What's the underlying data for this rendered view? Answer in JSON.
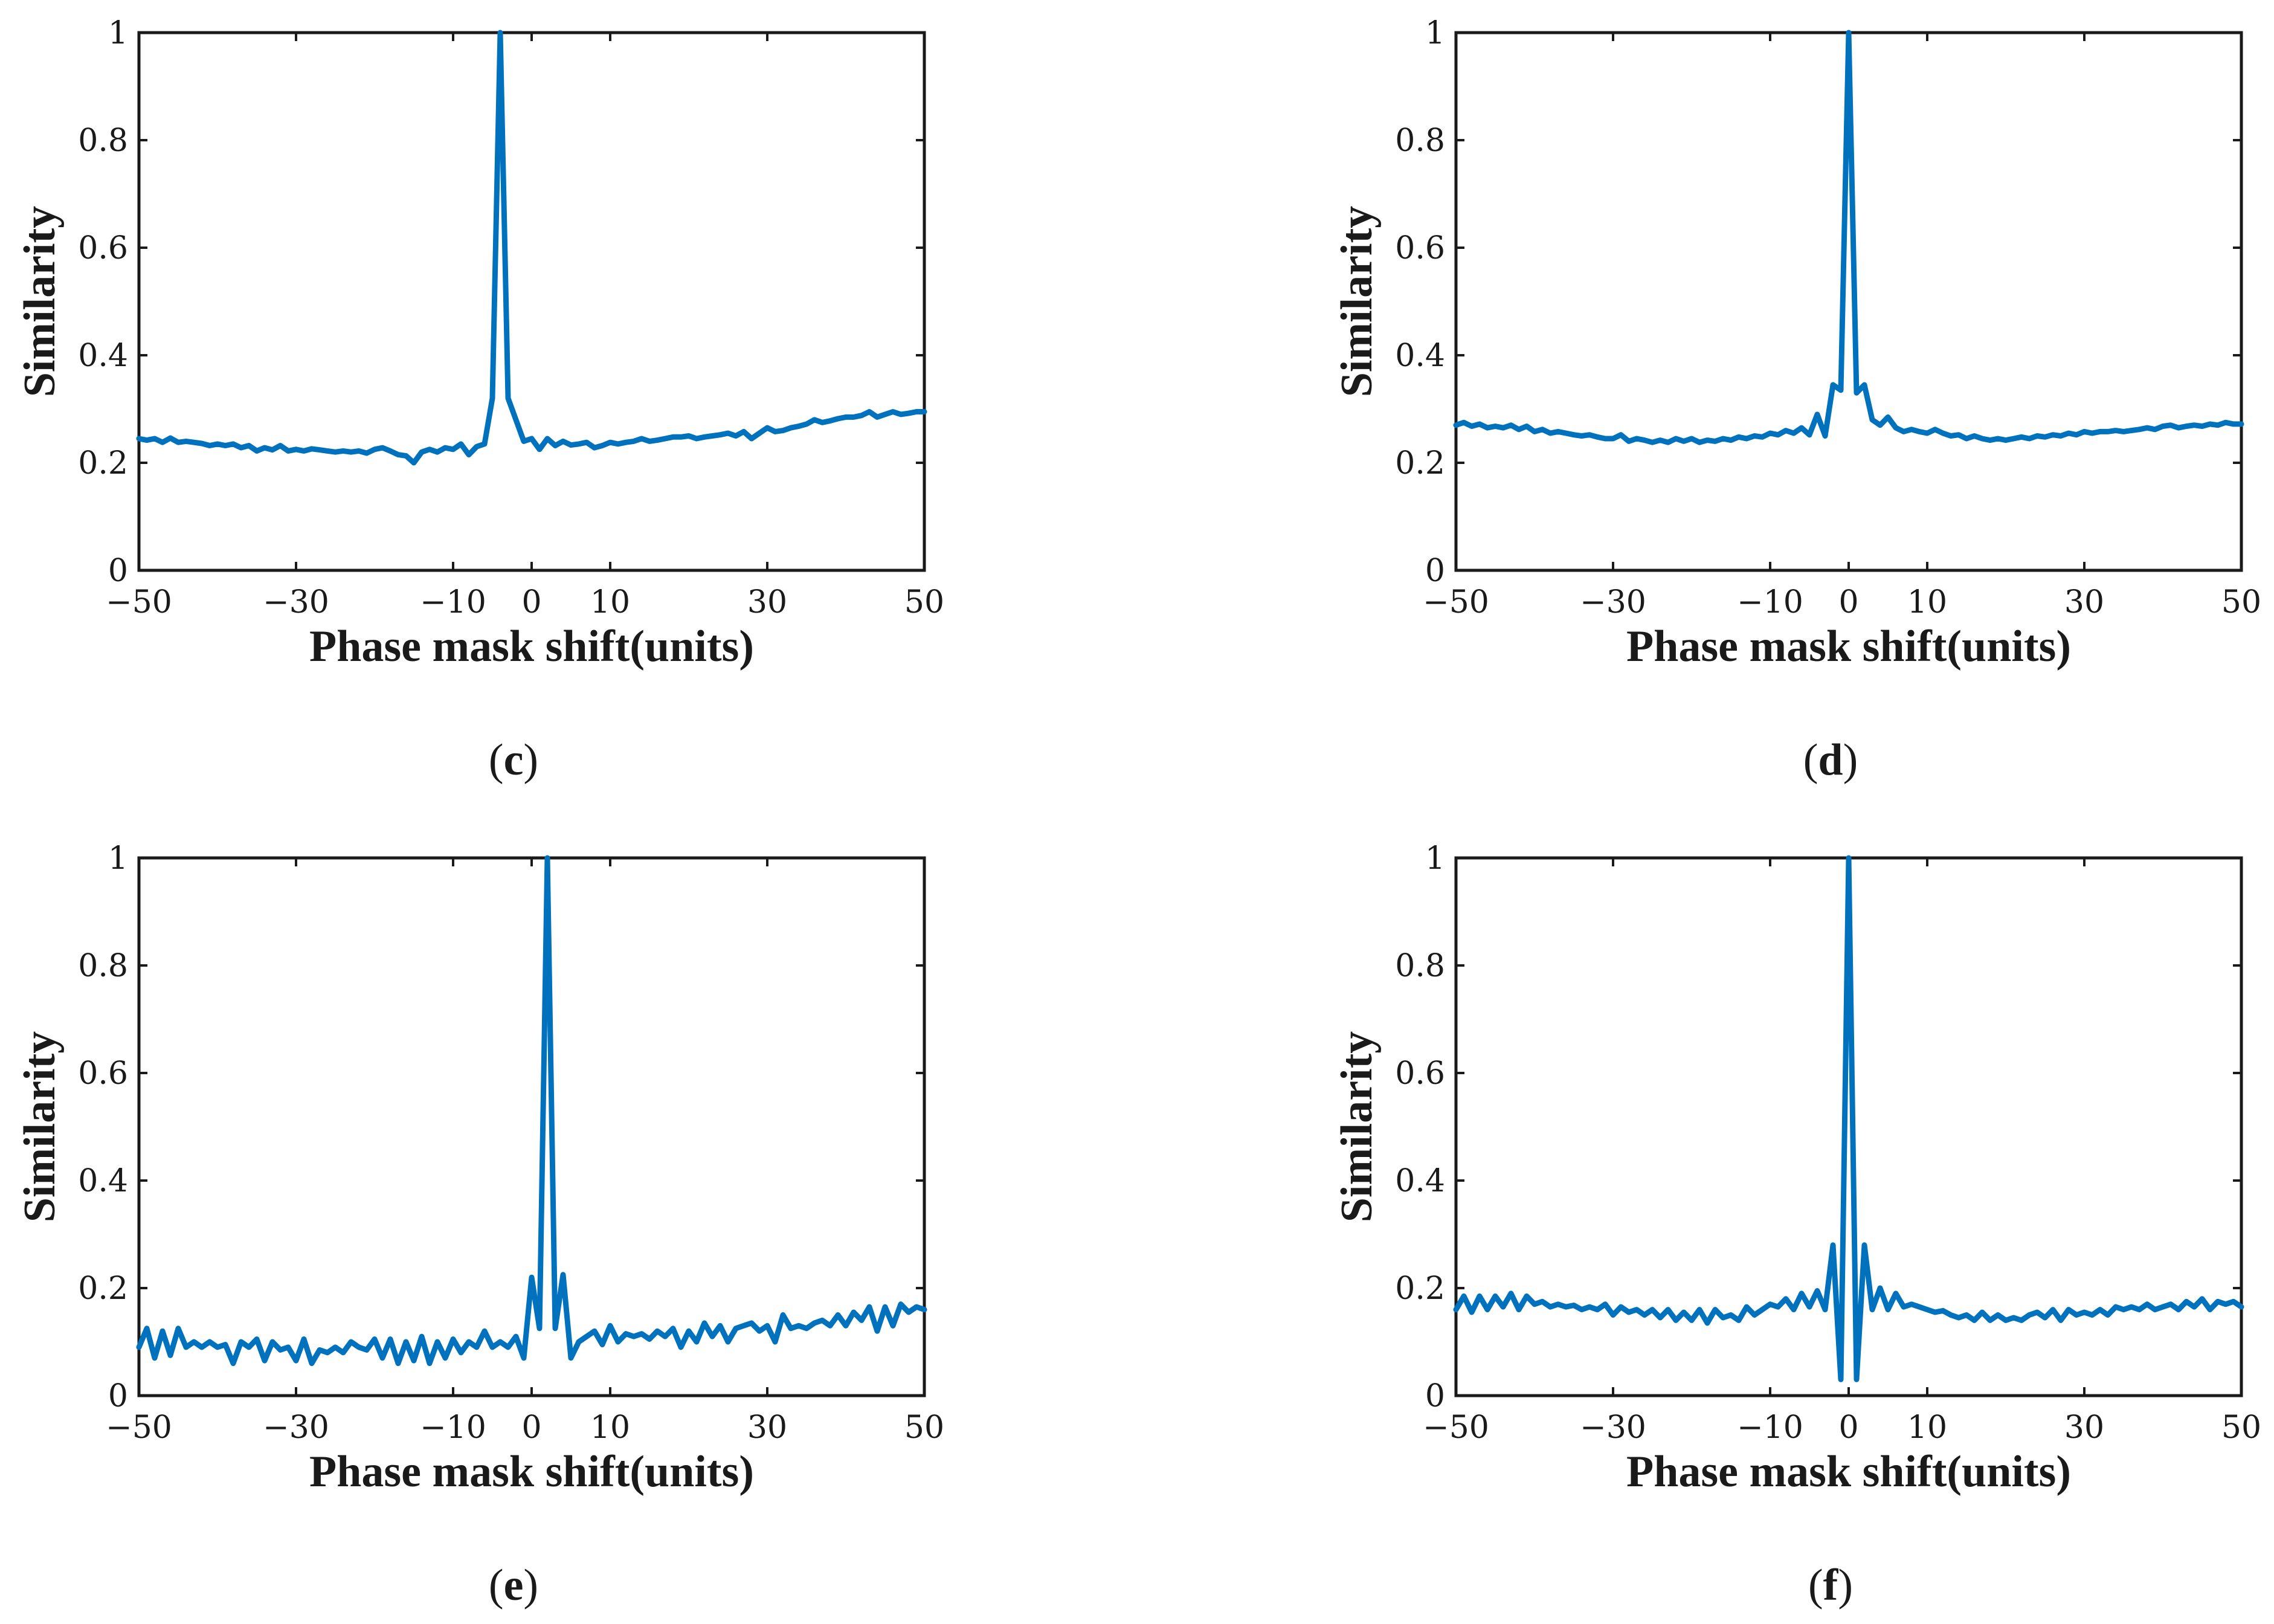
{
  "colors": {
    "series": "#0072bd",
    "axes": "#1a1a1a",
    "background": "#ffffff"
  },
  "chart_data": [
    {
      "panel": "c",
      "type": "line",
      "title": "",
      "xlabel": "Phase mask shift(units)",
      "ylabel": "Similarity",
      "xlim": [
        -50,
        50
      ],
      "ylim": [
        0,
        1
      ],
      "xticks": [
        -50,
        -30,
        -10,
        0,
        10,
        30,
        50
      ],
      "xtick_labels": [
        "−50",
        "−30",
        "−10",
        "0",
        "10",
        "30",
        "50"
      ],
      "yticks": [
        0,
        0.2,
        0.4,
        0.6,
        0.8,
        1
      ],
      "ytick_labels": [
        "0",
        "0.2",
        "0.4",
        "0.6",
        "0.8",
        "1"
      ],
      "caption": {
        "open": "(",
        "letter": "c",
        "close": ")"
      },
      "series": [
        {
          "name": "Similarity",
          "x": [
            -50,
            -49,
            -48,
            -47,
            -46,
            -45,
            -44,
            -43,
            -42,
            -41,
            -40,
            -39,
            -38,
            -37,
            -36,
            -35,
            -34,
            -33,
            -32,
            -31,
            -30,
            -29,
            -28,
            -27,
            -26,
            -25,
            -24,
            -23,
            -22,
            -21,
            -20,
            -19,
            -18,
            -17,
            -16,
            -15,
            -14,
            -13,
            -12,
            -11,
            -10,
            -9,
            -8,
            -7,
            -6,
            -5,
            -4,
            -3,
            -2,
            -1,
            0,
            1,
            2,
            3,
            4,
            5,
            6,
            7,
            8,
            9,
            10,
            11,
            12,
            13,
            14,
            15,
            16,
            17,
            18,
            19,
            20,
            21,
            22,
            23,
            24,
            25,
            26,
            27,
            28,
            29,
            30,
            31,
            32,
            33,
            34,
            35,
            36,
            37,
            38,
            39,
            40,
            41,
            42,
            43,
            44,
            45,
            46,
            47,
            48,
            49,
            50
          ],
          "y": [
            0.245,
            0.242,
            0.245,
            0.238,
            0.246,
            0.238,
            0.24,
            0.238,
            0.236,
            0.232,
            0.235,
            0.232,
            0.235,
            0.228,
            0.232,
            0.222,
            0.228,
            0.224,
            0.232,
            0.222,
            0.225,
            0.222,
            0.226,
            0.224,
            0.222,
            0.22,
            0.222,
            0.22,
            0.222,
            0.218,
            0.225,
            0.228,
            0.222,
            0.215,
            0.213,
            0.2,
            0.22,
            0.225,
            0.22,
            0.228,
            0.225,
            0.235,
            0.215,
            0.23,
            0.235,
            0.32,
            1.0,
            0.32,
            0.28,
            0.24,
            0.245,
            0.225,
            0.245,
            0.232,
            0.24,
            0.233,
            0.235,
            0.238,
            0.228,
            0.232,
            0.238,
            0.235,
            0.238,
            0.24,
            0.245,
            0.24,
            0.242,
            0.245,
            0.248,
            0.248,
            0.25,
            0.245,
            0.248,
            0.25,
            0.252,
            0.255,
            0.25,
            0.258,
            0.245,
            0.255,
            0.265,
            0.258,
            0.26,
            0.265,
            0.268,
            0.272,
            0.28,
            0.275,
            0.278,
            0.282,
            0.285,
            0.285,
            0.288,
            0.295,
            0.285,
            0.29,
            0.295,
            0.29,
            0.292,
            0.295,
            0.295
          ]
        }
      ]
    },
    {
      "panel": "d",
      "type": "line",
      "title": "",
      "xlabel": "Phase mask shift(units)",
      "ylabel": "Similarity",
      "xlim": [
        -50,
        50
      ],
      "ylim": [
        0,
        1
      ],
      "xticks": [
        -50,
        -30,
        -10,
        0,
        10,
        30,
        50
      ],
      "xtick_labels": [
        "−50",
        "−30",
        "−10",
        "0",
        "10",
        "30",
        "50"
      ],
      "yticks": [
        0,
        0.2,
        0.4,
        0.6,
        0.8,
        1
      ],
      "ytick_labels": [
        "0",
        "0.2",
        "0.4",
        "0.6",
        "0.8",
        "1"
      ],
      "caption": {
        "open": "(",
        "letter": "d",
        "close": ")"
      },
      "series": [
        {
          "name": "Similarity",
          "x": [
            -50,
            -49,
            -48,
            -47,
            -46,
            -45,
            -44,
            -43,
            -42,
            -41,
            -40,
            -39,
            -38,
            -37,
            -36,
            -35,
            -34,
            -33,
            -32,
            -31,
            -30,
            -29,
            -28,
            -27,
            -26,
            -25,
            -24,
            -23,
            -22,
            -21,
            -20,
            -19,
            -18,
            -17,
            -16,
            -15,
            -14,
            -13,
            -12,
            -11,
            -10,
            -9,
            -8,
            -7,
            -6,
            -5,
            -4,
            -3,
            -2,
            -1,
            0,
            1,
            2,
            3,
            4,
            5,
            6,
            7,
            8,
            9,
            10,
            11,
            12,
            13,
            14,
            15,
            16,
            17,
            18,
            19,
            20,
            21,
            22,
            23,
            24,
            25,
            26,
            27,
            28,
            29,
            30,
            31,
            32,
            33,
            34,
            35,
            36,
            37,
            38,
            39,
            40,
            41,
            42,
            43,
            44,
            45,
            46,
            47,
            48,
            49,
            50
          ],
          "y": [
            0.27,
            0.275,
            0.268,
            0.272,
            0.265,
            0.268,
            0.265,
            0.27,
            0.262,
            0.268,
            0.258,
            0.262,
            0.255,
            0.258,
            0.255,
            0.252,
            0.25,
            0.252,
            0.248,
            0.245,
            0.245,
            0.252,
            0.24,
            0.245,
            0.242,
            0.238,
            0.242,
            0.238,
            0.245,
            0.24,
            0.245,
            0.238,
            0.242,
            0.24,
            0.245,
            0.242,
            0.248,
            0.245,
            0.25,
            0.248,
            0.255,
            0.252,
            0.26,
            0.255,
            0.265,
            0.252,
            0.29,
            0.25,
            0.345,
            0.335,
            1.0,
            0.33,
            0.345,
            0.28,
            0.27,
            0.285,
            0.265,
            0.258,
            0.262,
            0.258,
            0.255,
            0.262,
            0.255,
            0.25,
            0.252,
            0.245,
            0.25,
            0.245,
            0.242,
            0.245,
            0.242,
            0.245,
            0.248,
            0.245,
            0.25,
            0.248,
            0.252,
            0.25,
            0.255,
            0.252,
            0.258,
            0.255,
            0.258,
            0.258,
            0.26,
            0.258,
            0.26,
            0.262,
            0.265,
            0.262,
            0.268,
            0.27,
            0.265,
            0.268,
            0.27,
            0.268,
            0.272,
            0.27,
            0.275,
            0.272,
            0.272
          ]
        }
      ]
    },
    {
      "panel": "e",
      "type": "line",
      "title": "",
      "xlabel": "Phase mask shift(units)",
      "ylabel": "Similarity",
      "xlim": [
        -50,
        50
      ],
      "ylim": [
        0,
        1
      ],
      "xticks": [
        -50,
        -30,
        -10,
        0,
        10,
        30,
        50
      ],
      "xtick_labels": [
        "−50",
        "−30",
        "−10",
        "0",
        "10",
        "30",
        "50"
      ],
      "yticks": [
        0,
        0.2,
        0.4,
        0.6,
        0.8,
        1
      ],
      "ytick_labels": [
        "0",
        "0.2",
        "0.4",
        "0.6",
        "0.8",
        "1"
      ],
      "caption": {
        "open": "(",
        "letter": "e",
        "close": ")"
      },
      "series": [
        {
          "name": "Similarity",
          "x": [
            -50,
            -49,
            -48,
            -47,
            -46,
            -45,
            -44,
            -43,
            -42,
            -41,
            -40,
            -39,
            -38,
            -37,
            -36,
            -35,
            -34,
            -33,
            -32,
            -31,
            -30,
            -29,
            -28,
            -27,
            -26,
            -25,
            -24,
            -23,
            -22,
            -21,
            -20,
            -19,
            -18,
            -17,
            -16,
            -15,
            -14,
            -13,
            -12,
            -11,
            -10,
            -9,
            -8,
            -7,
            -6,
            -5,
            -4,
            -3,
            -2,
            -1,
            0,
            1,
            2,
            3,
            4,
            5,
            6,
            7,
            8,
            9,
            10,
            11,
            12,
            13,
            14,
            15,
            16,
            17,
            18,
            19,
            20,
            21,
            22,
            23,
            24,
            25,
            26,
            27,
            28,
            29,
            30,
            31,
            32,
            33,
            34,
            35,
            36,
            37,
            38,
            39,
            40,
            41,
            42,
            43,
            44,
            45,
            46,
            47,
            48,
            49,
            50
          ],
          "y": [
            0.09,
            0.125,
            0.07,
            0.12,
            0.075,
            0.125,
            0.09,
            0.1,
            0.09,
            0.1,
            0.09,
            0.095,
            0.06,
            0.1,
            0.09,
            0.105,
            0.065,
            0.1,
            0.085,
            0.09,
            0.065,
            0.105,
            0.06,
            0.085,
            0.08,
            0.09,
            0.08,
            0.1,
            0.09,
            0.085,
            0.105,
            0.07,
            0.105,
            0.06,
            0.1,
            0.065,
            0.11,
            0.06,
            0.1,
            0.07,
            0.105,
            0.08,
            0.1,
            0.09,
            0.12,
            0.09,
            0.1,
            0.09,
            0.11,
            0.07,
            0.22,
            0.125,
            1.0,
            0.125,
            0.225,
            0.07,
            0.1,
            0.11,
            0.12,
            0.095,
            0.13,
            0.1,
            0.115,
            0.11,
            0.115,
            0.105,
            0.12,
            0.11,
            0.125,
            0.09,
            0.12,
            0.1,
            0.135,
            0.11,
            0.13,
            0.1,
            0.125,
            0.13,
            0.135,
            0.12,
            0.13,
            0.1,
            0.15,
            0.125,
            0.13,
            0.125,
            0.135,
            0.14,
            0.13,
            0.15,
            0.13,
            0.155,
            0.14,
            0.165,
            0.12,
            0.165,
            0.13,
            0.17,
            0.155,
            0.165,
            0.16
          ]
        }
      ]
    },
    {
      "panel": "f",
      "type": "line",
      "title": "",
      "xlabel": "Phase mask shift(units)",
      "ylabel": "Similarity",
      "xlim": [
        -50,
        50
      ],
      "ylim": [
        0,
        1
      ],
      "xticks": [
        -50,
        -30,
        -10,
        0,
        10,
        30,
        50
      ],
      "xtick_labels": [
        "−50",
        "−30",
        "−10",
        "0",
        "10",
        "30",
        "50"
      ],
      "yticks": [
        0,
        0.2,
        0.4,
        0.6,
        0.8,
        1
      ],
      "ytick_labels": [
        "0",
        "0.2",
        "0.4",
        "0.6",
        "0.8",
        "1"
      ],
      "caption": {
        "open": "(",
        "letter": "f",
        "close": ")"
      },
      "series": [
        {
          "name": "Similarity",
          "x": [
            -50,
            -49,
            -48,
            -47,
            -46,
            -45,
            -44,
            -43,
            -42,
            -41,
            -40,
            -39,
            -38,
            -37,
            -36,
            -35,
            -34,
            -33,
            -32,
            -31,
            -30,
            -29,
            -28,
            -27,
            -26,
            -25,
            -24,
            -23,
            -22,
            -21,
            -20,
            -19,
            -18,
            -17,
            -16,
            -15,
            -14,
            -13,
            -12,
            -11,
            -10,
            -9,
            -8,
            -7,
            -6,
            -5,
            -4,
            -3,
            -2,
            -1,
            0,
            1,
            2,
            3,
            4,
            5,
            6,
            7,
            8,
            9,
            10,
            11,
            12,
            13,
            14,
            15,
            16,
            17,
            18,
            19,
            20,
            21,
            22,
            23,
            24,
            25,
            26,
            27,
            28,
            29,
            30,
            31,
            32,
            33,
            34,
            35,
            36,
            37,
            38,
            39,
            40,
            41,
            42,
            43,
            44,
            45,
            46,
            47,
            48,
            49,
            50
          ],
          "y": [
            0.16,
            0.185,
            0.155,
            0.185,
            0.16,
            0.185,
            0.165,
            0.19,
            0.16,
            0.185,
            0.17,
            0.175,
            0.165,
            0.17,
            0.165,
            0.168,
            0.16,
            0.165,
            0.16,
            0.17,
            0.15,
            0.165,
            0.155,
            0.16,
            0.15,
            0.16,
            0.145,
            0.16,
            0.14,
            0.155,
            0.14,
            0.16,
            0.135,
            0.16,
            0.145,
            0.15,
            0.14,
            0.165,
            0.15,
            0.16,
            0.17,
            0.165,
            0.18,
            0.16,
            0.19,
            0.165,
            0.195,
            0.16,
            0.28,
            0.03,
            1.0,
            0.03,
            0.28,
            0.16,
            0.2,
            0.16,
            0.19,
            0.165,
            0.17,
            0.165,
            0.16,
            0.155,
            0.158,
            0.15,
            0.145,
            0.15,
            0.14,
            0.155,
            0.14,
            0.15,
            0.14,
            0.145,
            0.14,
            0.15,
            0.155,
            0.145,
            0.16,
            0.14,
            0.16,
            0.15,
            0.155,
            0.15,
            0.16,
            0.15,
            0.165,
            0.16,
            0.165,
            0.16,
            0.17,
            0.16,
            0.165,
            0.17,
            0.16,
            0.175,
            0.165,
            0.18,
            0.16,
            0.175,
            0.17,
            0.175,
            0.165
          ]
        }
      ]
    }
  ]
}
